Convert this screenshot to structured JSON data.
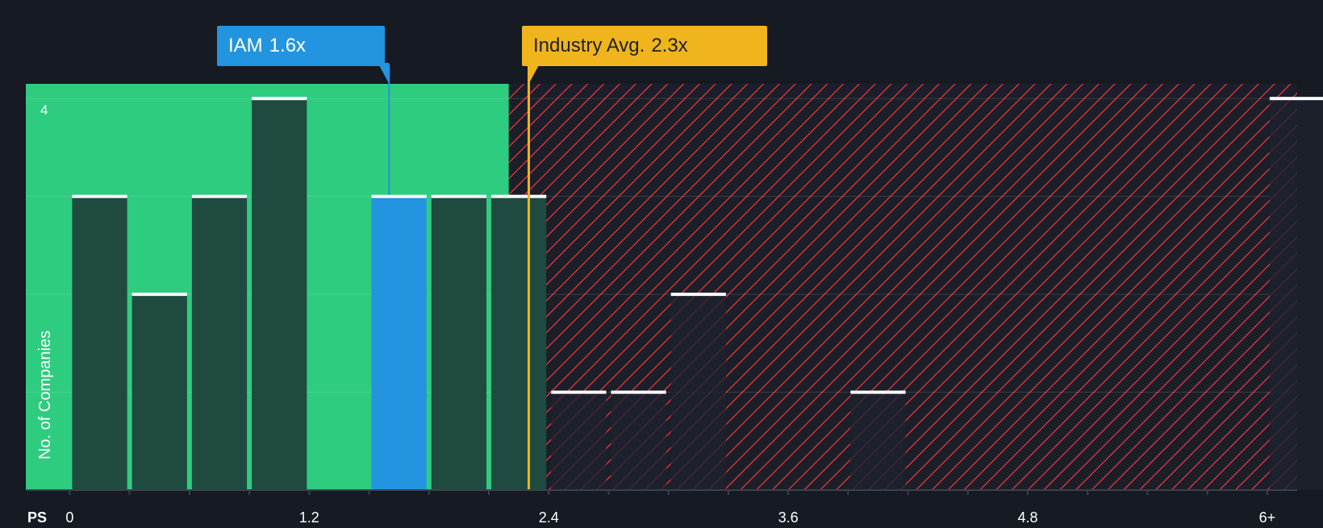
{
  "chart_data": {
    "type": "bar",
    "xlabel": "PS",
    "ylabel": "No. of Companies",
    "x_ticks": [
      {
        "value": 0,
        "label": "0"
      },
      {
        "value": 1.2,
        "label": "1.2"
      },
      {
        "value": 2.4,
        "label": "2.4"
      },
      {
        "value": 3.6,
        "label": "3.6"
      },
      {
        "value": 4.8,
        "label": "4.8"
      },
      {
        "value": 6.0,
        "label": "6+"
      }
    ],
    "y_ticks": [
      {
        "value": 4,
        "label": "4"
      }
    ],
    "xlim": [
      -0.22,
      6.15
    ],
    "ylim": [
      0,
      4.15
    ],
    "bin_width": 0.3,
    "bins": [
      {
        "start": 0.0,
        "count": 3
      },
      {
        "start": 0.3,
        "count": 2
      },
      {
        "start": 0.6,
        "count": 3
      },
      {
        "start": 0.9,
        "count": 4
      },
      {
        "start": 1.2,
        "count": 0
      },
      {
        "start": 1.5,
        "count": 3,
        "highlight": true
      },
      {
        "start": 1.8,
        "count": 3
      },
      {
        "start": 2.1,
        "count": 3
      },
      {
        "start": 2.4,
        "count": 1
      },
      {
        "start": 2.7,
        "count": 1
      },
      {
        "start": 3.0,
        "count": 2
      },
      {
        "start": 3.3,
        "count": 0
      },
      {
        "start": 3.6,
        "count": 0
      },
      {
        "start": 3.9,
        "count": 1
      },
      {
        "start": 4.2,
        "count": 0
      },
      {
        "start": 4.5,
        "count": 0
      },
      {
        "start": 4.8,
        "count": 0
      },
      {
        "start": 5.1,
        "count": 0
      },
      {
        "start": 5.4,
        "count": 0
      },
      {
        "start": 5.7,
        "count": 0
      },
      {
        "start": 6.0,
        "count": 4
      }
    ],
    "fair_zone_end": 2.2,
    "company": {
      "name": "IAM",
      "value": 1.6,
      "value_label": "1.6x"
    },
    "industry": {
      "name": "Industry Avg.",
      "value": 2.3,
      "value_label": "2.3x"
    },
    "grid": true,
    "colors": {
      "background": "#151a23",
      "fair_zone": "#2ecc7f",
      "bar": "#1f4a3f",
      "highlight_bar": "#2394e0",
      "hatch": "#d4303a",
      "company": "#2394e0",
      "industry": "#f0b41c"
    }
  }
}
